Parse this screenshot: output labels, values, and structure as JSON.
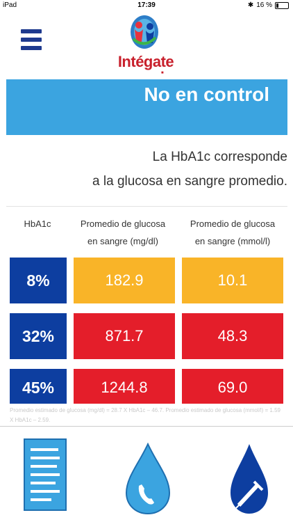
{
  "status_bar": {
    "device": "iPad",
    "time": "17:39",
    "battery": "16 %"
  },
  "header": {
    "app_name": "Intégate"
  },
  "banner": {
    "text": "No en control"
  },
  "description": {
    "line1": "La HbA1c corresponde",
    "line2": "a la glucosa en sangre promedio."
  },
  "table": {
    "headers": [
      {
        "line1": "HbA1c",
        "line2": ""
      },
      {
        "line1": "Promedio de glucosa",
        "line2": "en sangre (mg/dl)"
      },
      {
        "line1": "Promedio de glucosa",
        "line2": "en sangre (mmol/l)"
      }
    ],
    "rows": [
      {
        "hba1c": "8%",
        "mgdl": "182.9",
        "mmol": "10.1",
        "status_color": "#f9b428"
      },
      {
        "hba1c": "32%",
        "mgdl": "871.7",
        "mmol": "48.3",
        "status_color": "#e41e2a"
      },
      {
        "hba1c": "45%",
        "mgdl": "1244.8",
        "mmol": "69.0",
        "status_color": "#e41e2a"
      }
    ]
  },
  "formula": "Promedio estimado de glucosa (mg/dl) = 28.7 X HbA1c – 46.7. Promedio estimado de glucosa (mmol/l) = 1.59 X HbA1c – 2.59.",
  "bottom_nav": {
    "items": [
      {
        "icon": "document-icon"
      },
      {
        "icon": "drop-phone-icon"
      },
      {
        "icon": "drop-syringe-icon"
      }
    ]
  },
  "colors": {
    "accent_blue": "#3ba4e0",
    "navy": "#0d3ea0",
    "orange": "#f9b428",
    "red": "#e41e2a"
  }
}
